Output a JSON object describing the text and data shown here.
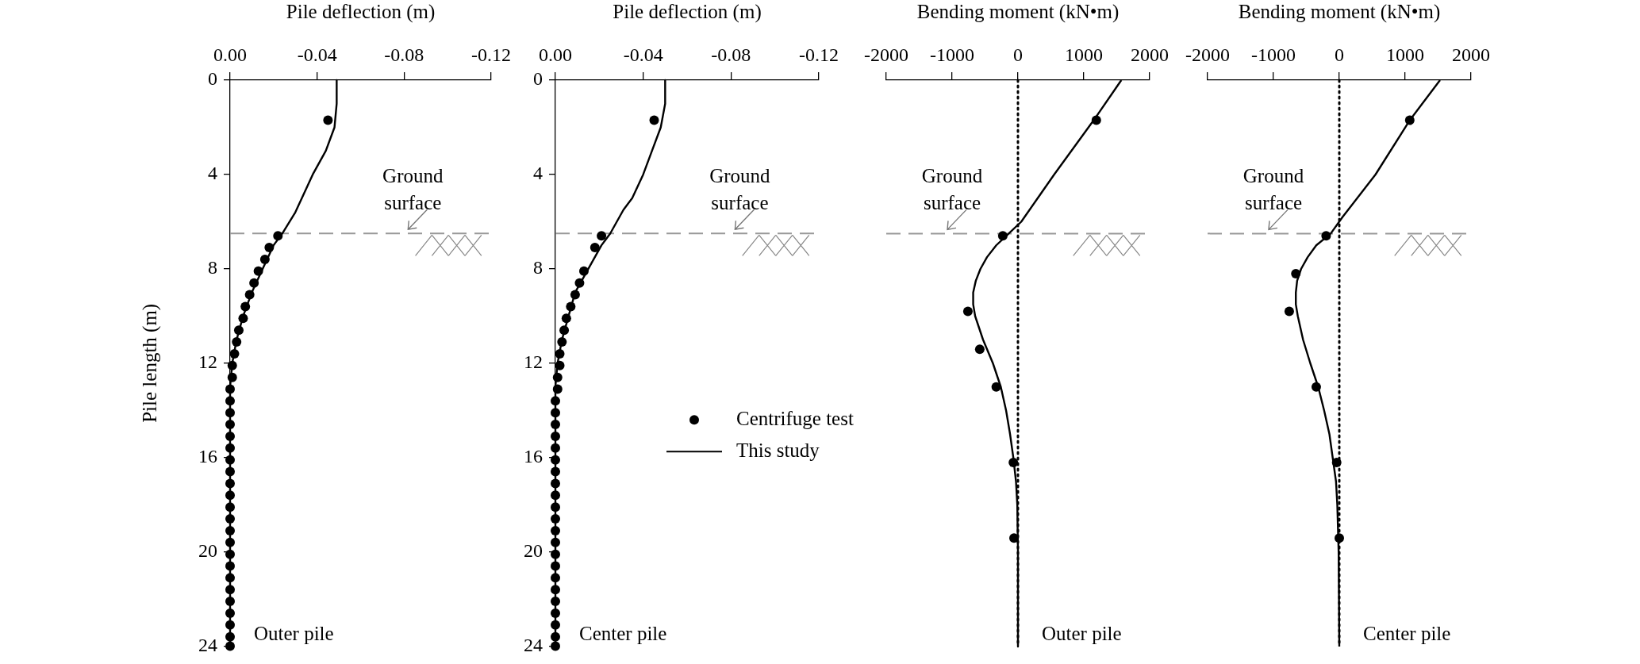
{
  "chart_data": [
    {
      "type": "scatter",
      "xlabel": "Pile deflection (m)",
      "ylabel": "Pile length (m)",
      "xlim": [
        0,
        -0.12
      ],
      "xticks": [
        {
          "value": 0,
          "label": "0.00"
        },
        -0.04,
        -0.08,
        -0.12
      ],
      "ylim": [
        24,
        0
      ],
      "yticks": [
        0,
        4,
        8,
        12,
        16,
        20,
        24
      ],
      "ref_lines": [
        {
          "axis": "y",
          "value": 6.5,
          "label": "Ground surface",
          "color": "#999999",
          "line_style": "dashed"
        }
      ],
      "annotations": [
        "Outer pile"
      ],
      "series": [
        {
          "type": "scatter",
          "marker": "circle",
          "color": "#000000",
          "x": [
            -0.045,
            -0.022,
            -0.018,
            -0.016,
            -0.013,
            -0.011,
            -0.009,
            -0.007,
            -0.006,
            -0.004,
            -0.003,
            -0.002,
            -0.001,
            -0.001,
            0,
            0,
            0,
            0,
            0,
            0,
            0,
            0,
            0,
            0,
            0,
            0,
            0,
            0,
            0,
            0,
            0,
            0,
            0,
            0,
            0,
            0,
            0
          ],
          "values": [
            1.7,
            6.6,
            7.1,
            7.6,
            8.1,
            8.6,
            9.1,
            9.6,
            10.1,
            10.6,
            11.1,
            11.6,
            12.1,
            12.6,
            13.1,
            13.6,
            14.1,
            14.6,
            15.1,
            15.6,
            16.1,
            16.6,
            17.1,
            17.6,
            18.1,
            18.6,
            19.1,
            19.6,
            20.1,
            20.6,
            21.1,
            21.6,
            22.1,
            22.6,
            23.1,
            23.6,
            24.0
          ]
        },
        {
          "type": "line",
          "line_style": "solid",
          "color": "#000000",
          "x": [
            -0.049,
            -0.049,
            -0.048,
            -0.044,
            -0.038,
            -0.033,
            -0.03,
            -0.024,
            -0.02,
            -0.015,
            -0.01,
            -0.006,
            -0.003,
            -0.001,
            0,
            0
          ],
          "values": [
            0,
            1,
            2,
            3,
            4,
            5,
            5.6,
            6.5,
            7,
            8,
            9,
            10,
            11,
            12,
            13,
            24
          ]
        }
      ]
    },
    {
      "type": "scatter",
      "xlabel": "Pile deflection (m)",
      "xlim": [
        0,
        -0.12
      ],
      "xticks": [
        {
          "value": 0,
          "label": "0.00"
        },
        -0.04,
        -0.08,
        -0.12
      ],
      "ylim": [
        24,
        0
      ],
      "yticks": [
        0,
        4,
        8,
        12,
        16,
        20,
        24
      ],
      "legend": "right",
      "ref_lines": [
        {
          "axis": "y",
          "value": 6.5,
          "label": "Ground surface",
          "color": "#999999",
          "line_style": "dashed"
        }
      ],
      "annotations": [
        "Center pile"
      ],
      "series": [
        {
          "type": "scatter",
          "name": "Centrifuge test",
          "marker": "circle",
          "color": "#000000",
          "x": [
            -0.045,
            -0.021,
            -0.018,
            -0.013,
            -0.011,
            -0.009,
            -0.007,
            -0.005,
            -0.004,
            -0.003,
            -0.002,
            -0.002,
            -0.001,
            -0.001,
            0,
            0,
            0,
            0,
            0,
            0,
            0,
            0,
            0,
            0,
            0,
            0,
            0,
            0,
            0,
            0,
            0,
            0,
            0,
            0,
            0,
            0
          ],
          "values": [
            1.7,
            6.6,
            7.1,
            8.1,
            8.6,
            9.1,
            9.6,
            10.1,
            10.6,
            11.1,
            11.6,
            12.1,
            12.6,
            13.1,
            13.6,
            14.1,
            14.6,
            15.1,
            15.6,
            16.1,
            16.6,
            17.1,
            17.6,
            18.1,
            18.6,
            19.1,
            19.6,
            20.1,
            20.6,
            21.1,
            21.6,
            22.1,
            22.6,
            23.1,
            23.6,
            24.0
          ]
        },
        {
          "type": "line",
          "name": "This study",
          "line_style": "solid",
          "color": "#000000",
          "x": [
            -0.05,
            -0.05,
            -0.048,
            -0.044,
            -0.04,
            -0.035,
            -0.031,
            -0.025,
            -0.021,
            -0.015,
            -0.009,
            -0.006,
            -0.003,
            -0.001,
            0,
            0
          ],
          "values": [
            0,
            1,
            2,
            3,
            4,
            5,
            5.5,
            6.5,
            7,
            8,
            9,
            10,
            11,
            12,
            13,
            24
          ]
        }
      ]
    },
    {
      "type": "scatter",
      "xlabel": "Bending moment (kN•m)",
      "xlim": [
        -2000,
        2000
      ],
      "xticks": [
        -2000,
        -1000,
        0,
        1000,
        2000
      ],
      "ylim": [
        24,
        0
      ],
      "tick_labels": "x",
      "ref_lines": [
        {
          "axis": "y",
          "value": 6.5,
          "label": "Ground surface",
          "color": "#999999",
          "line_style": "dashed"
        },
        {
          "axis": "x",
          "value": 0,
          "color": "#000000",
          "line_style": "dotted"
        }
      ],
      "annotations": [
        "Outer pile"
      ],
      "series": [
        {
          "type": "scatter",
          "marker": "circle",
          "color": "#000000",
          "x": [
            1190,
            -230,
            -760,
            -580,
            -330,
            -70,
            -60
          ],
          "values": [
            1.7,
            6.6,
            9.8,
            11.4,
            13.0,
            16.2,
            19.4
          ]
        },
        {
          "type": "line",
          "line_style": "solid",
          "color": "#000000",
          "x": [
            1570,
            1150,
            550,
            300,
            50,
            -140,
            -330,
            -470,
            -570,
            -640,
            -680,
            -680,
            -650,
            -530,
            -380,
            -260,
            -180,
            -120,
            -70,
            -30,
            -10,
            0,
            0
          ],
          "values": [
            0,
            1.7,
            4,
            5,
            6,
            6.5,
            7,
            7.5,
            8,
            8.5,
            9,
            9.5,
            10,
            11,
            12,
            13,
            14,
            15,
            16,
            17,
            18,
            20,
            24
          ]
        }
      ]
    },
    {
      "type": "scatter",
      "xlabel": "Bending moment (kN•m)",
      "xlim": [
        -2000,
        2000
      ],
      "xticks": [
        -2000,
        -1000,
        0,
        1000,
        2000
      ],
      "ylim": [
        24,
        0
      ],
      "tick_labels": "x",
      "ref_lines": [
        {
          "axis": "y",
          "value": 6.5,
          "label": "Ground surface",
          "color": "#999999",
          "line_style": "dashed"
        },
        {
          "axis": "x",
          "value": 0,
          "color": "#000000",
          "line_style": "dotted"
        }
      ],
      "annotations": [
        "Center pile"
      ],
      "series": [
        {
          "type": "scatter",
          "marker": "circle",
          "color": "#000000",
          "x": [
            1070,
            -200,
            -660,
            -760,
            -350,
            -40,
            0
          ],
          "values": [
            1.7,
            6.6,
            8.2,
            9.8,
            13.0,
            16.2,
            19.4
          ]
        },
        {
          "type": "line",
          "line_style": "solid",
          "color": "#000000",
          "x": [
            1530,
            1070,
            550,
            50,
            -130,
            -350,
            -480,
            -580,
            -640,
            -660,
            -660,
            -630,
            -550,
            -440,
            -320,
            -230,
            -150,
            -100,
            -50,
            -30,
            -10,
            0
          ],
          "values": [
            0,
            1.7,
            4,
            5.8,
            6.5,
            7,
            7.5,
            8,
            8.5,
            9,
            9.5,
            10,
            11,
            12,
            13,
            14,
            15,
            16,
            17,
            18,
            20,
            24
          ]
        }
      ]
    }
  ]
}
